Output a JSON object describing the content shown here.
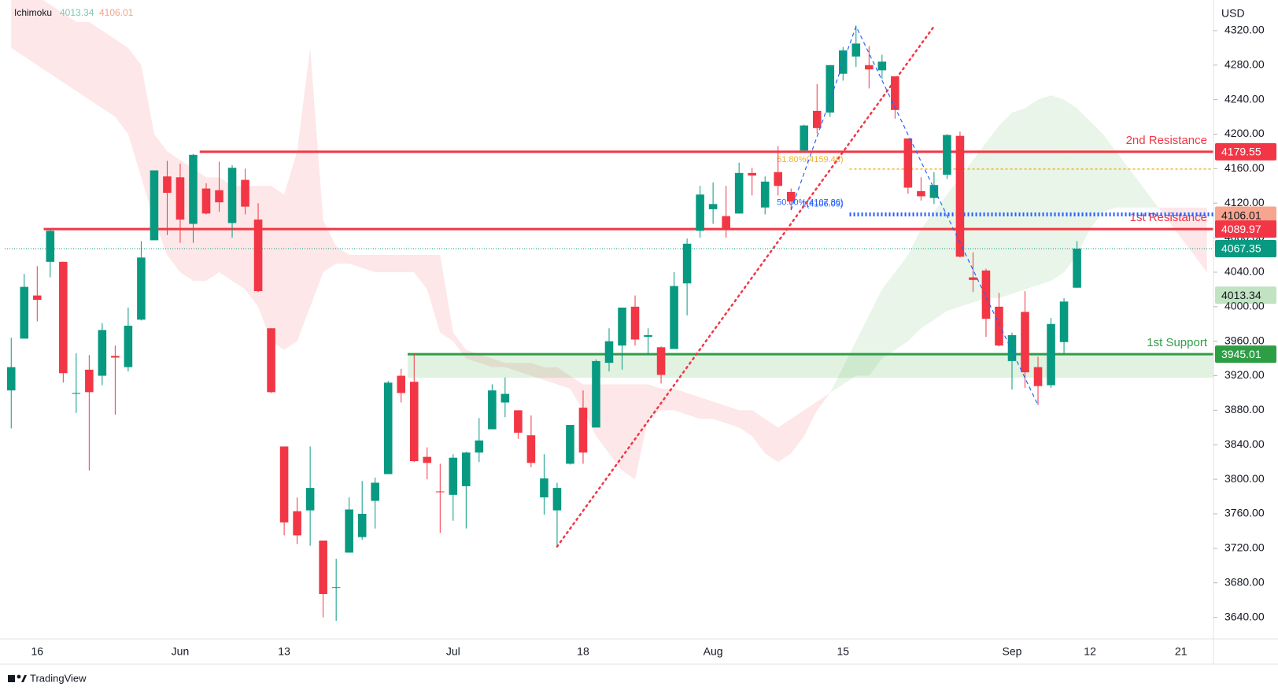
{
  "chart_data": {
    "type": "candlestick",
    "indicator": "Ichimoku",
    "currency": "USD",
    "ichimoku_values": [
      4013.34,
      4106.01
    ],
    "ichimoku_colors": [
      "#22ab94",
      "#f7a58f"
    ],
    "up_color": "#089981",
    "down_color": "#f23645",
    "cloud_colors": [
      "rgba(76,175,80,0.13)",
      "rgba(242,54,69,0.12)"
    ],
    "ylim": [
      3615,
      4350
    ],
    "yticks": [
      {
        "value": 3640,
        "label": "3640.00"
      },
      {
        "value": 3680,
        "label": "3680.00"
      },
      {
        "value": 3720,
        "label": "3720.00"
      },
      {
        "value": 3760,
        "label": "3760.00"
      },
      {
        "value": 3800,
        "label": "3800.00"
      },
      {
        "value": 3840,
        "label": "3840.00"
      },
      {
        "value": 3880,
        "label": "3880.00"
      },
      {
        "value": 3920,
        "label": "3920.00"
      },
      {
        "value": 3960,
        "label": "3960.00"
      },
      {
        "value": 4000,
        "label": "4000.00"
      },
      {
        "value": 4040,
        "label": "4040.00"
      },
      {
        "value": 4080,
        "label": "4080.00"
      },
      {
        "value": 4120,
        "label": "4120.00"
      },
      {
        "value": 4160,
        "label": "4160.00"
      },
      {
        "value": 4200,
        "label": "4200.00"
      },
      {
        "value": 4240,
        "label": "4240.00"
      },
      {
        "value": 4280,
        "label": "4280.00"
      },
      {
        "value": 4320,
        "label": "4320.00"
      }
    ],
    "categories": [
      null,
      null,
      "16",
      null,
      null,
      null,
      null,
      null,
      null,
      null,
      null,
      null,
      null,
      "Jun",
      null,
      null,
      null,
      null,
      null,
      null,
      null,
      "13",
      null,
      null,
      null,
      null,
      null,
      null,
      null,
      null,
      null,
      null,
      null,
      null,
      "Jul",
      null,
      null,
      null,
      null,
      null,
      null,
      null,
      null,
      null,
      "18",
      null,
      null,
      null,
      null,
      null,
      null,
      null,
      null,
      null,
      "Aug",
      null,
      null,
      null,
      null,
      null,
      null,
      null,
      null,
      null,
      "15",
      null,
      null,
      null,
      null,
      null,
      null,
      null,
      null,
      null,
      null,
      null,
      null,
      "Sep",
      null,
      null,
      null,
      null,
      null,
      "12",
      null,
      null,
      null,
      null,
      null,
      null,
      "21",
      null,
      null
    ],
    "open": [
      3903,
      3963,
      4013,
      4052,
      4052,
      3899,
      3927,
      3920,
      3943,
      3930,
      3985,
      4077,
      4151,
      4150,
      4096,
      4137,
      4135,
      4097,
      4147,
      4101,
      3975,
      3838,
      3763,
      3764,
      3729,
      3675,
      3715,
      3733,
      3775,
      3806,
      3920,
      3913,
      3826,
      3786,
      3782,
      3792,
      3831,
      3858,
      3889,
      3880,
      3851,
      3779,
      3764,
      3818,
      3883,
      3860,
      3935,
      3955,
      4000,
      3965,
      3953,
      3951,
      4027,
      4088,
      4113,
      4105,
      4108,
      4155,
      4115,
      4156,
      4133,
      4181,
      4227,
      4225,
      4270,
      4290,
      4280,
      4274,
      4267,
      4195,
      4134,
      4126,
      4153,
      4198,
      4034,
      4042,
      4000,
      3937,
      3994,
      3930,
      3909,
      3959,
      4022,
      null,
      null,
      null,
      null,
      null,
      null,
      null,
      null,
      null,
      null
    ],
    "high": [
      3964,
      4038,
      4047,
      4090,
      4052,
      3946,
      3944,
      3981,
      3955,
      3999,
      4076,
      4158,
      4169,
      4166,
      4177,
      4143,
      4168,
      4164,
      4160,
      4120,
      3975,
      3838,
      3779,
      3838,
      3729,
      3708,
      3779,
      3798,
      3802,
      3914,
      3928,
      3946,
      3837,
      3818,
      3829,
      3832,
      3871,
      3910,
      3918,
      3880,
      3874,
      3829,
      3796,
      3863,
      3903,
      3939,
      3975,
      3999,
      4013,
      3975,
      3954,
      4040,
      4079,
      4140,
      4144,
      4140,
      4167,
      4161,
      4151,
      4186,
      4137,
      4211,
      4258,
      4280,
      4301,
      4325,
      4302,
      4292,
      4267,
      4195,
      4150,
      4156,
      4200,
      4203,
      4063,
      4044,
      4016,
      3970,
      4018,
      3942,
      3987,
      4010,
      4076,
      null,
      null,
      null,
      null,
      null,
      null,
      null,
      null,
      null,
      null
    ],
    "low": [
      3859,
      3963,
      3983,
      4034,
      3912,
      3877,
      3810,
      3909,
      3875,
      3925,
      3984,
      4077,
      4083,
      4074,
      4074,
      4107,
      4110,
      4080,
      4107,
      4017,
      3900,
      3735,
      3725,
      3723,
      3640,
      3636,
      3715,
      3730,
      3743,
      3806,
      3889,
      3820,
      3800,
      3738,
      3752,
      3743,
      3820,
      3858,
      3872,
      3847,
      3814,
      3759,
      3722,
      3817,
      3818,
      3860,
      3925,
      3927,
      3955,
      3944,
      3911,
      3951,
      3990,
      4080,
      4096,
      4080,
      4108,
      4129,
      4107,
      4129,
      4112,
      4181,
      4201,
      4220,
      4262,
      4278,
      4253,
      4264,
      4218,
      4131,
      4123,
      4119,
      4148,
      4057,
      4017,
      3965,
      3954,
      3904,
      3906,
      3886,
      3906,
      3945,
      4022,
      null,
      null,
      null,
      null,
      null,
      null,
      null,
      null,
      null,
      null
    ],
    "close": [
      3930,
      4023,
      4008,
      4088,
      3923,
      3900,
      3901,
      3973,
      3941,
      3978,
      4057,
      4158,
      4132,
      4101,
      4176,
      4108,
      4121,
      4161,
      4116,
      4018,
      3901,
      3750,
      3735,
      3790,
      3667,
      3675,
      3765,
      3760,
      3796,
      3912,
      3900,
      3821,
      3819,
      3785,
      3825,
      3831,
      3845,
      3903,
      3899,
      3854,
      3819,
      3801,
      3790,
      3863,
      3831,
      3937,
      3960,
      3999,
      3962,
      3967,
      3921,
      4024,
      4073,
      4130,
      4119,
      4091,
      4155,
      4152,
      4145,
      4140,
      4122,
      4210,
      4207,
      4280,
      4297,
      4305,
      4275,
      4284,
      4228,
      4138,
      4128,
      4141,
      4199,
      4058,
      4031,
      3986,
      3955,
      3967,
      3924,
      3908,
      3980,
      4006,
      4067.35,
      null,
      null,
      null,
      null,
      null,
      null,
      null,
      null,
      null,
      null
    ],
    "span_a": [
      4300,
      4290,
      4280,
      4270,
      4260,
      4250,
      4240,
      4230,
      4220,
      4200,
      4150,
      4100,
      4060,
      4040,
      4030,
      4030,
      4040,
      4030,
      4020,
      4000,
      3960,
      3950,
      3960,
      4000,
      4040,
      4050,
      4050,
      4045,
      4040,
      4040,
      4040,
      4040,
      4020,
      3970,
      3960,
      3940,
      3935,
      3930,
      3930,
      3925,
      3920,
      3915,
      3910,
      3905,
      3880,
      3850,
      3830,
      3810,
      3800,
      3870,
      3880,
      3880,
      3875,
      3870,
      3870,
      3865,
      3860,
      3850,
      3830,
      3820,
      3830,
      3850,
      3880,
      3900,
      3930,
      3960,
      3990,
      4020,
      4040,
      4060,
      4090,
      4110,
      4130,
      4150,
      4170,
      4190,
      4210,
      4225,
      4230,
      4240,
      4245,
      4240,
      4230,
      4215,
      4200,
      4180,
      4160,
      4140,
      4120,
      4100,
      4080,
      4060,
      4040
    ],
    "span_b": [
      4360,
      4360,
      4360,
      4350,
      4340,
      4330,
      4330,
      4320,
      4310,
      4300,
      4280,
      4200,
      4180,
      4170,
      4160,
      4150,
      4150,
      4140,
      4140,
      4140,
      4140,
      4130,
      4180,
      4300,
      4100,
      4070,
      4060,
      4060,
      4060,
      4060,
      4060,
      4060,
      4060,
      4060,
      3970,
      3950,
      3945,
      3940,
      3935,
      3935,
      3935,
      3930,
      3930,
      3920,
      3910,
      3910,
      3910,
      3910,
      3910,
      3910,
      3905,
      3905,
      3900,
      3895,
      3890,
      3885,
      3880,
      3880,
      3870,
      3860,
      3870,
      3880,
      3890,
      3900,
      3910,
      3920,
      3920,
      3940,
      3950,
      3960,
      3975,
      3985,
      3995,
      4000,
      4005,
      4010,
      4010,
      4015,
      4020,
      4025,
      4030,
      4040,
      4060,
      4090,
      4110,
      4115,
      4115,
      4115,
      4115,
      4115,
      4115,
      4115,
      4115
    ],
    "levels": [
      {
        "name": "2nd Resistance",
        "value": 4179.55,
        "color": "#f23645"
      },
      {
        "name": "1st Resistance",
        "value": 4089.97,
        "color": "#f23645"
      },
      {
        "name": "1st Support",
        "value": 3945.01,
        "color": "#2e9e45"
      }
    ],
    "fib_levels": [
      {
        "label": "61.80%(4159.48)",
        "value": 4159.48,
        "color": "#f0b429"
      },
      {
        "label": "50.00%(4107.86)",
        "value": 4107.86,
        "color": "#2962ff"
      },
      {
        "label": "1(4106.09)",
        "value": 4106.09,
        "color": "#2962ff"
      }
    ]
  },
  "brand": "TradingView"
}
